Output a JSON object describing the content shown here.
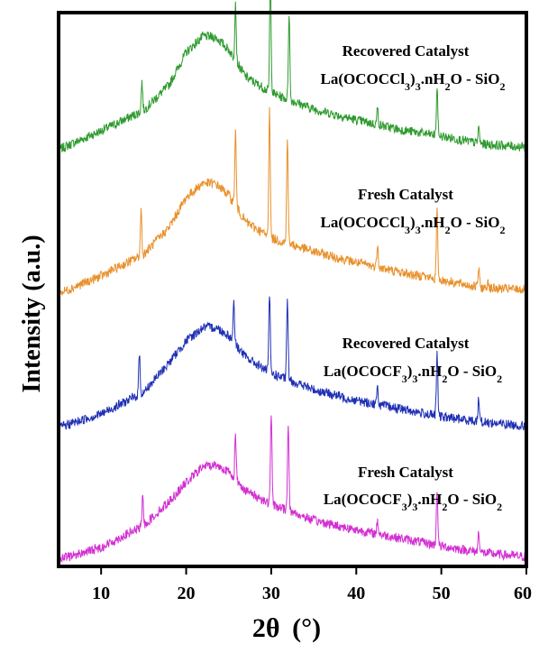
{
  "chart_data": {
    "type": "line",
    "xlabel_symbol": "2θ",
    "xlabel_unit": "(°)",
    "ylabel": "Intensity (a.u.)",
    "xlim": [
      5,
      60
    ],
    "xticks": [
      "10",
      "20",
      "30",
      "40",
      "50",
      "60"
    ],
    "grid": false,
    "series": [
      {
        "color": "#2e9a2e",
        "label_line1": "Recovered Catalyst",
        "formula": {
          "a": "La(OCOCCl",
          "s1": "3",
          "b": ")",
          "s2": "3",
          "c": ".nH",
          "s3": "2",
          "d": "O - SiO",
          "s4": "2"
        },
        "baseline": [
          [
            5,
            0.04
          ],
          [
            10,
            0.18
          ],
          [
            15,
            0.33
          ],
          [
            18,
            0.52
          ],
          [
            20,
            0.76
          ],
          [
            22,
            0.88
          ],
          [
            23.5,
            0.87
          ],
          [
            25,
            0.78
          ],
          [
            27,
            0.58
          ],
          [
            30,
            0.46
          ],
          [
            35,
            0.34
          ],
          [
            40,
            0.26
          ],
          [
            45,
            0.19
          ],
          [
            50,
            0.14
          ],
          [
            55,
            0.08
          ],
          [
            60,
            0.06
          ]
        ],
        "peaks": [
          [
            14.8,
            0.22
          ],
          [
            25.8,
            0.43
          ],
          [
            29.9,
            0.9
          ],
          [
            32.1,
            0.65
          ],
          [
            42.5,
            0.12
          ],
          [
            49.5,
            0.34
          ],
          [
            54.4,
            0.12
          ]
        ]
      },
      {
        "color": "#e8902a",
        "label_line1": "Fresh Catalyst",
        "formula": {
          "a": "La(OCOCCl",
          "s1": "3",
          "b": ")",
          "s2": "3",
          "c": ".nH",
          "s3": "2",
          "d": "O - SiO",
          "s4": "2"
        },
        "baseline": [
          [
            5,
            0.03
          ],
          [
            10,
            0.16
          ],
          [
            15,
            0.32
          ],
          [
            18,
            0.52
          ],
          [
            20,
            0.74
          ],
          [
            22,
            0.85
          ],
          [
            23.5,
            0.84
          ],
          [
            25,
            0.76
          ],
          [
            27,
            0.56
          ],
          [
            30,
            0.44
          ],
          [
            35,
            0.34
          ],
          [
            40,
            0.26
          ],
          [
            45,
            0.19
          ],
          [
            50,
            0.13
          ],
          [
            55,
            0.07
          ],
          [
            60,
            0.06
          ]
        ],
        "peaks": [
          [
            14.7,
            0.34
          ],
          [
            25.8,
            0.55
          ],
          [
            29.8,
            0.97
          ],
          [
            31.9,
            0.8
          ],
          [
            42.5,
            0.18
          ],
          [
            47.8,
            0.05
          ],
          [
            49.5,
            0.5
          ],
          [
            54.4,
            0.14
          ],
          [
            55.5,
            0.06
          ]
        ]
      },
      {
        "color": "#1f2fb4",
        "label_line1": "Recovered Catalyst",
        "formula": {
          "a": "La(OCOCF",
          "s1": "3",
          "b": ")",
          "s2": "3",
          "c": ".nH",
          "s3": "2",
          "d": "O - SiO",
          "s4": "2"
        },
        "baseline": [
          [
            5,
            0.04
          ],
          [
            10,
            0.14
          ],
          [
            15,
            0.3
          ],
          [
            18,
            0.52
          ],
          [
            20,
            0.68
          ],
          [
            22,
            0.78
          ],
          [
            23.5,
            0.78
          ],
          [
            25,
            0.72
          ],
          [
            27,
            0.56
          ],
          [
            30,
            0.44
          ],
          [
            35,
            0.32
          ],
          [
            40,
            0.24
          ],
          [
            45,
            0.18
          ],
          [
            50,
            0.12
          ],
          [
            55,
            0.08
          ],
          [
            60,
            0.05
          ]
        ],
        "peaks": [
          [
            14.5,
            0.3
          ],
          [
            25.6,
            0.3
          ],
          [
            29.8,
            0.58
          ],
          [
            31.9,
            0.6
          ],
          [
            42.5,
            0.12
          ],
          [
            49.5,
            0.45
          ],
          [
            54.4,
            0.18
          ]
        ]
      },
      {
        "color": "#d22ed2",
        "label_line1": "Fresh Catalyst",
        "formula": {
          "a": "La(OCOCF",
          "s1": "3",
          "b": ")",
          "s2": "3",
          "c": ".nH",
          "s3": "2",
          "d": "O - SiO",
          "s4": "2"
        },
        "baseline": [
          [
            5,
            0.03
          ],
          [
            10,
            0.12
          ],
          [
            15,
            0.28
          ],
          [
            18,
            0.46
          ],
          [
            20,
            0.6
          ],
          [
            22,
            0.72
          ],
          [
            23.5,
            0.73
          ],
          [
            25,
            0.68
          ],
          [
            27,
            0.54
          ],
          [
            30,
            0.44
          ],
          [
            35,
            0.32
          ],
          [
            40,
            0.25
          ],
          [
            45,
            0.19
          ],
          [
            50,
            0.13
          ],
          [
            55,
            0.08
          ],
          [
            60,
            0.05
          ]
        ],
        "peaks": [
          [
            14.9,
            0.22
          ],
          [
            25.8,
            0.32
          ],
          [
            30.0,
            0.68
          ],
          [
            32.0,
            0.66
          ],
          [
            42.5,
            0.1
          ],
          [
            49.5,
            0.42
          ],
          [
            54.4,
            0.16
          ]
        ]
      }
    ]
  }
}
